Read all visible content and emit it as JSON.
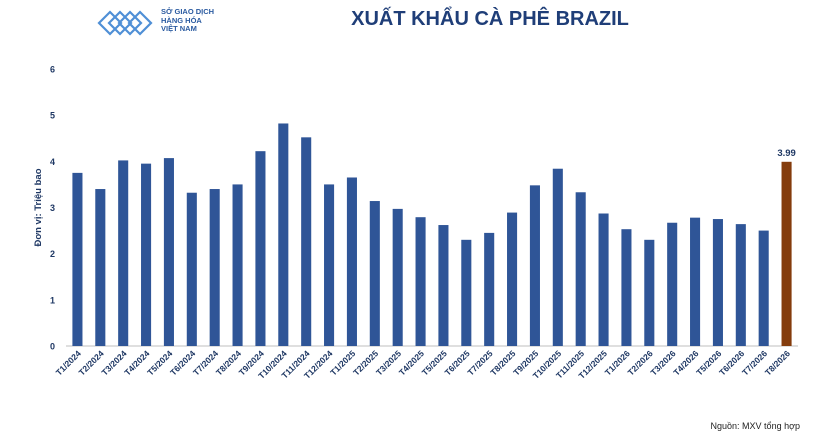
{
  "header": {
    "logo_lines": [
      "SỞ GIAO DỊCH",
      "HÀNG HÓA",
      "VIỆT NAM"
    ],
    "title": "XUẤT KHẨU CÀ PHÊ BRAZIL"
  },
  "footer": {
    "source": "Nguồn: MXV tổng hợp"
  },
  "colors": {
    "bar": "#2f5597",
    "highlight": "#843c0c",
    "title": "#1f3e78",
    "axis": "#1f3864"
  },
  "chart_data": {
    "type": "bar",
    "title": "XUẤT KHẨU CÀ PHÊ BRAZIL",
    "xlabel": "",
    "ylabel": "Đơn vị: Triệu bao",
    "ylim": [
      0,
      6
    ],
    "yticks": [
      0,
      1,
      2,
      3,
      4,
      5,
      6
    ],
    "grid": false,
    "categories": [
      "T1/2024",
      "T2/2024",
      "T3/2024",
      "T4/2024",
      "T5/2024",
      "T6/2024",
      "T7/2024",
      "T8/2024",
      "T9/2024",
      "T10/2024",
      "T11/2024",
      "T12/2024",
      "T1/2025",
      "T2/2025",
      "T3/2025",
      "T4/2025",
      "T5/2025",
      "T6/2025",
      "T7/2025",
      "T8/2025",
      "T9/2025",
      "T10/2025",
      "T11/2025",
      "T12/2025",
      "T1/2026",
      "T2/2026",
      "T3/2026",
      "T4/2026",
      "T5/2026",
      "T6/2026",
      "T7/2026",
      "T8/2026"
    ],
    "values": [
      3.75,
      3.4,
      4.02,
      3.95,
      4.07,
      3.32,
      3.4,
      3.5,
      4.22,
      4.82,
      4.52,
      3.5,
      3.65,
      3.14,
      2.97,
      2.79,
      2.62,
      2.3,
      2.45,
      2.89,
      3.48,
      3.84,
      3.33,
      2.87,
      2.53,
      2.3,
      2.67,
      2.78,
      2.75,
      2.64,
      2.5,
      3.99
    ],
    "highlight_index": 31,
    "data_labels": [
      {
        "index": 31,
        "text": "3.99"
      }
    ]
  }
}
